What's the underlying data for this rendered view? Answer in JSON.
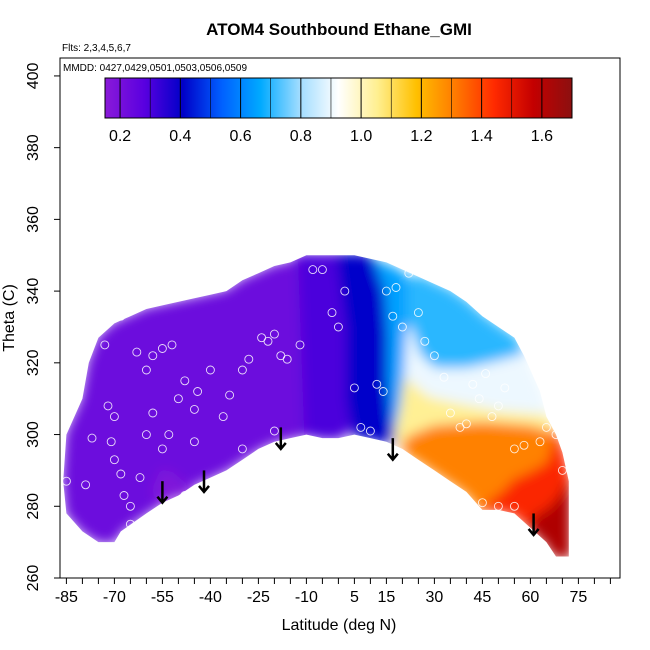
{
  "chart_data": {
    "type": "heatmap",
    "title": "ATOM4 Southbound Ethane_GMI",
    "flights_note": "Flts: 2,3,4,5,6,7",
    "dates_note": "MMDD: 0427,0429,0501,0503,0506,0509",
    "xlabel": "Latitude (deg N)",
    "ylabel": "Theta (C)",
    "xlim": [
      -87,
      88
    ],
    "ylim": [
      260,
      405
    ],
    "x_ticks": [
      "-85",
      "-70",
      "-55",
      "-40",
      "-25",
      "-10",
      "5",
      "15",
      "30",
      "45",
      "60",
      "75"
    ],
    "x_tick_values": [
      -85,
      -70,
      -55,
      -40,
      -25,
      -10,
      5,
      15,
      30,
      45,
      60,
      75
    ],
    "y_ticks": [
      "260",
      "280",
      "300",
      "320",
      "340",
      "360",
      "380",
      "400"
    ],
    "y_tick_values": [
      260,
      280,
      300,
      320,
      340,
      360,
      380,
      400
    ],
    "colorbar": {
      "min": 0.15,
      "max": 1.7,
      "ticks": [
        "0.2",
        "0.4",
        "0.6",
        "0.8",
        "1.0",
        "1.2",
        "1.4",
        "1.6"
      ],
      "tick_values": [
        0.2,
        0.4,
        0.6,
        0.8,
        1.0,
        1.2,
        1.4,
        1.6
      ],
      "colors": [
        "#8a1ad8",
        "#5a00e0",
        "#0000c8",
        "#0060ff",
        "#00aaff",
        "#a0dcff",
        "#ffffff",
        "#ffef90",
        "#ffc000",
        "#ff7a00",
        "#ff2a00",
        "#c40000",
        "#8c1010"
      ]
    },
    "domain_bottom": [
      [
        -86,
        287
      ],
      [
        -85,
        278
      ],
      [
        -80,
        273
      ],
      [
        -75,
        270
      ],
      [
        -70,
        270
      ],
      [
        -68,
        273
      ],
      [
        -60,
        278
      ],
      [
        -55,
        281
      ],
      [
        -50,
        283
      ],
      [
        -45,
        286
      ],
      [
        -40,
        288
      ],
      [
        -35,
        290
      ],
      [
        -30,
        293
      ],
      [
        -25,
        296
      ],
      [
        -20,
        298
      ],
      [
        -15,
        299
      ],
      [
        -10,
        300
      ],
      [
        -5,
        299
      ],
      [
        0,
        299
      ],
      [
        5,
        300
      ],
      [
        10,
        299
      ],
      [
        15,
        298
      ],
      [
        20,
        296
      ],
      [
        25,
        293
      ],
      [
        30,
        290
      ],
      [
        35,
        287
      ],
      [
        40,
        284
      ],
      [
        45,
        279
      ],
      [
        50,
        279
      ],
      [
        55,
        278
      ],
      [
        60,
        274
      ],
      [
        65,
        270
      ],
      [
        68,
        266
      ],
      [
        72,
        266
      ]
    ],
    "domain_top": [
      [
        -86,
        287
      ],
      [
        -85,
        300
      ],
      [
        -80,
        310
      ],
      [
        -78,
        320
      ],
      [
        -75,
        327
      ],
      [
        -70,
        331
      ],
      [
        -65,
        333
      ],
      [
        -60,
        335
      ],
      [
        -55,
        336
      ],
      [
        -45,
        338
      ],
      [
        -40,
        339
      ],
      [
        -35,
        340
      ],
      [
        -30,
        343
      ],
      [
        -25,
        345
      ],
      [
        -20,
        347
      ],
      [
        -15,
        348
      ],
      [
        -10,
        350
      ],
      [
        5,
        350
      ],
      [
        15,
        348
      ],
      [
        25,
        344
      ],
      [
        35,
        340
      ],
      [
        40,
        337
      ],
      [
        45,
        333
      ],
      [
        50,
        330
      ],
      [
        55,
        327
      ],
      [
        58,
        322
      ],
      [
        60,
        318
      ],
      [
        63,
        312
      ],
      [
        65,
        305
      ],
      [
        68,
        300
      ],
      [
        70,
        295
      ],
      [
        72,
        287
      ],
      [
        72,
        266
      ]
    ],
    "regions": [
      {
        "name": "south-violet",
        "value": 0.23,
        "polygon": [
          [
            -86,
            287
          ],
          [
            -85,
            300
          ],
          [
            -80,
            310
          ],
          [
            -78,
            320
          ],
          [
            -75,
            327
          ],
          [
            -70,
            331
          ],
          [
            -65,
            333
          ],
          [
            -60,
            335
          ],
          [
            -55,
            336
          ],
          [
            -45,
            338
          ],
          [
            -40,
            339
          ],
          [
            -35,
            340
          ],
          [
            -30,
            343
          ],
          [
            -25,
            345
          ],
          [
            -20,
            347
          ],
          [
            -15,
            348
          ],
          [
            -12,
            350
          ],
          [
            -10,
            300
          ],
          [
            -15,
            299
          ],
          [
            -20,
            298
          ],
          [
            -25,
            296
          ],
          [
            -30,
            293
          ],
          [
            -35,
            290
          ],
          [
            -40,
            288
          ],
          [
            -45,
            286
          ],
          [
            -50,
            283
          ],
          [
            -55,
            281
          ],
          [
            -60,
            278
          ],
          [
            -68,
            273
          ],
          [
            -70,
            270
          ],
          [
            -75,
            270
          ],
          [
            -80,
            273
          ],
          [
            -85,
            278
          ]
        ]
      },
      {
        "name": "mid-purple",
        "value": 0.3,
        "polygon": [
          [
            -12,
            350
          ],
          [
            0,
            350
          ],
          [
            3,
            330
          ],
          [
            5,
            310
          ],
          [
            3,
            301
          ],
          [
            0,
            299
          ],
          [
            -5,
            299
          ],
          [
            -10,
            300
          ]
        ]
      },
      {
        "name": "tropical-blue",
        "value": 0.4,
        "polygon": [
          [
            0,
            350
          ],
          [
            8,
            350
          ],
          [
            12,
            348
          ],
          [
            15,
            340
          ],
          [
            16,
            328
          ],
          [
            16,
            315
          ],
          [
            17,
            305
          ],
          [
            17,
            298
          ],
          [
            15,
            298
          ],
          [
            10,
            299
          ],
          [
            5,
            300
          ],
          [
            3,
            310
          ],
          [
            3,
            330
          ]
        ]
      },
      {
        "name": "tropical-lightblue",
        "value": 0.65,
        "polygon": [
          [
            12,
            348
          ],
          [
            18,
            346
          ],
          [
            22,
            343
          ],
          [
            22,
            330
          ],
          [
            21,
            315
          ],
          [
            20,
            308
          ],
          [
            18,
            300
          ],
          [
            17,
            305
          ],
          [
            16,
            315
          ],
          [
            16,
            328
          ],
          [
            15,
            340
          ]
        ]
      },
      {
        "name": "upper-cyan",
        "value": 0.7,
        "polygon": [
          [
            22,
            343
          ],
          [
            25,
            344
          ],
          [
            35,
            340
          ],
          [
            40,
            337
          ],
          [
            45,
            333
          ],
          [
            50,
            330
          ],
          [
            55,
            327
          ],
          [
            58,
            322
          ],
          [
            50,
            320
          ],
          [
            40,
            318
          ],
          [
            30,
            318
          ],
          [
            25,
            322
          ],
          [
            22,
            330
          ]
        ]
      },
      {
        "name": "upper-whitish",
        "value": 0.9,
        "polygon": [
          [
            22,
            330
          ],
          [
            25,
            322
          ],
          [
            30,
            318
          ],
          [
            40,
            318
          ],
          [
            50,
            320
          ],
          [
            58,
            322
          ],
          [
            60,
            318
          ],
          [
            63,
            312
          ],
          [
            65,
            305
          ],
          [
            50,
            306
          ],
          [
            38,
            308
          ],
          [
            28,
            310
          ],
          [
            21,
            315
          ]
        ]
      },
      {
        "name": "transition-cream",
        "value": 1.05,
        "polygon": [
          [
            21,
            315
          ],
          [
            28,
            310
          ],
          [
            38,
            308
          ],
          [
            50,
            306
          ],
          [
            65,
            305
          ],
          [
            68,
            300
          ],
          [
            60,
            302
          ],
          [
            45,
            303
          ],
          [
            30,
            302
          ],
          [
            22,
            299
          ],
          [
            20,
            296
          ],
          [
            18,
            300
          ],
          [
            20,
            308
          ]
        ]
      },
      {
        "name": "north-orange",
        "value": 1.3,
        "polygon": [
          [
            20,
            296
          ],
          [
            22,
            299
          ],
          [
            30,
            302
          ],
          [
            45,
            303
          ],
          [
            60,
            302
          ],
          [
            68,
            300
          ],
          [
            66,
            292
          ],
          [
            60,
            289
          ],
          [
            55,
            287
          ],
          [
            52,
            284
          ],
          [
            45,
            279
          ],
          [
            40,
            284
          ],
          [
            35,
            287
          ],
          [
            30,
            290
          ],
          [
            25,
            293
          ]
        ]
      },
      {
        "name": "north-red",
        "value": 1.45,
        "polygon": [
          [
            45,
            279
          ],
          [
            50,
            279
          ],
          [
            55,
            278
          ],
          [
            60,
            274
          ],
          [
            65,
            270
          ],
          [
            68,
            266
          ],
          [
            72,
            266
          ],
          [
            72,
            287
          ],
          [
            70,
            295
          ],
          [
            68,
            300
          ],
          [
            66,
            292
          ],
          [
            60,
            289
          ],
          [
            55,
            287
          ],
          [
            52,
            284
          ]
        ]
      },
      {
        "name": "polar-darkred",
        "value": 1.62,
        "polygon": [
          [
            60,
            274
          ],
          [
            65,
            270
          ],
          [
            68,
            266
          ],
          [
            72,
            266
          ],
          [
            72,
            287
          ],
          [
            70,
            283
          ],
          [
            66,
            279
          ],
          [
            62,
            277
          ]
        ]
      },
      {
        "name": "south-dark-blob",
        "value": 0.18,
        "polygon": [
          [
            -58,
            284
          ],
          [
            -55,
            290
          ],
          [
            -52,
            289
          ],
          [
            -48,
            286
          ],
          [
            -46,
            283
          ],
          [
            -50,
            283
          ],
          [
            -55,
            281
          ]
        ]
      }
    ],
    "observations": [
      [
        -85,
        287
      ],
      [
        -79,
        286
      ],
      [
        -77,
        299
      ],
      [
        -72,
        308
      ],
      [
        -71,
        298
      ],
      [
        -70,
        293
      ],
      [
        -68,
        289
      ],
      [
        -67,
        283
      ],
      [
        -65,
        275
      ],
      [
        -62,
        288
      ],
      [
        -60,
        300
      ],
      [
        -58,
        306
      ],
      [
        -55,
        296
      ],
      [
        -53,
        300
      ],
      [
        -50,
        310
      ],
      [
        -48,
        315
      ],
      [
        -45,
        298
      ],
      [
        -45,
        307
      ],
      [
        -44,
        312
      ],
      [
        -40,
        318
      ],
      [
        -36,
        305
      ],
      [
        -34,
        311
      ],
      [
        -30,
        318
      ],
      [
        -28,
        321
      ],
      [
        -24,
        327
      ],
      [
        -22,
        326
      ],
      [
        -20,
        328
      ],
      [
        -18,
        322
      ],
      [
        -16,
        321
      ],
      [
        -12,
        325
      ],
      [
        -8,
        346
      ],
      [
        -5,
        346
      ],
      [
        -2,
        334
      ],
      [
        0,
        330
      ],
      [
        2,
        340
      ],
      [
        5,
        313
      ],
      [
        7,
        302
      ],
      [
        10,
        301
      ],
      [
        12,
        314
      ],
      [
        14,
        312
      ],
      [
        15,
        340
      ],
      [
        18,
        341
      ],
      [
        17,
        333
      ],
      [
        20,
        330
      ],
      [
        22,
        345
      ],
      [
        25,
        334
      ],
      [
        27,
        326
      ],
      [
        30,
        322
      ],
      [
        33,
        316
      ],
      [
        35,
        306
      ],
      [
        38,
        302
      ],
      [
        40,
        303
      ],
      [
        42,
        314
      ],
      [
        44,
        310
      ],
      [
        46,
        317
      ],
      [
        48,
        305
      ],
      [
        50,
        308
      ],
      [
        52,
        313
      ],
      [
        55,
        296
      ],
      [
        58,
        297
      ],
      [
        60,
        328
      ],
      [
        63,
        298
      ],
      [
        65,
        302
      ],
      [
        68,
        300
      ],
      [
        70,
        290
      ],
      [
        -73,
        325
      ],
      [
        -68,
        333
      ],
      [
        -70,
        305
      ],
      [
        -55,
        324
      ],
      [
        -52,
        325
      ],
      [
        -60,
        318
      ],
      [
        -63,
        323
      ],
      [
        -58,
        322
      ],
      [
        -65,
        280
      ],
      [
        -48,
        283
      ],
      [
        -42,
        285
      ],
      [
        -38,
        287
      ],
      [
        -30,
        296
      ],
      [
        -25,
        290
      ],
      [
        -20,
        301
      ],
      [
        -12,
        290
      ],
      [
        8,
        280
      ],
      [
        10,
        290
      ],
      [
        45,
        281
      ],
      [
        50,
        280
      ],
      [
        55,
        280
      ]
    ],
    "arrows": [
      {
        "lat": -55,
        "theta_top": 287,
        "theta_bottom": 281
      },
      {
        "lat": -42,
        "theta_top": 290,
        "theta_bottom": 284
      },
      {
        "lat": -18,
        "theta_top": 302,
        "theta_bottom": 296
      },
      {
        "lat": 17,
        "theta_top": 299,
        "theta_bottom": 293
      },
      {
        "lat": 61,
        "theta_top": 278,
        "theta_bottom": 272
      }
    ]
  }
}
